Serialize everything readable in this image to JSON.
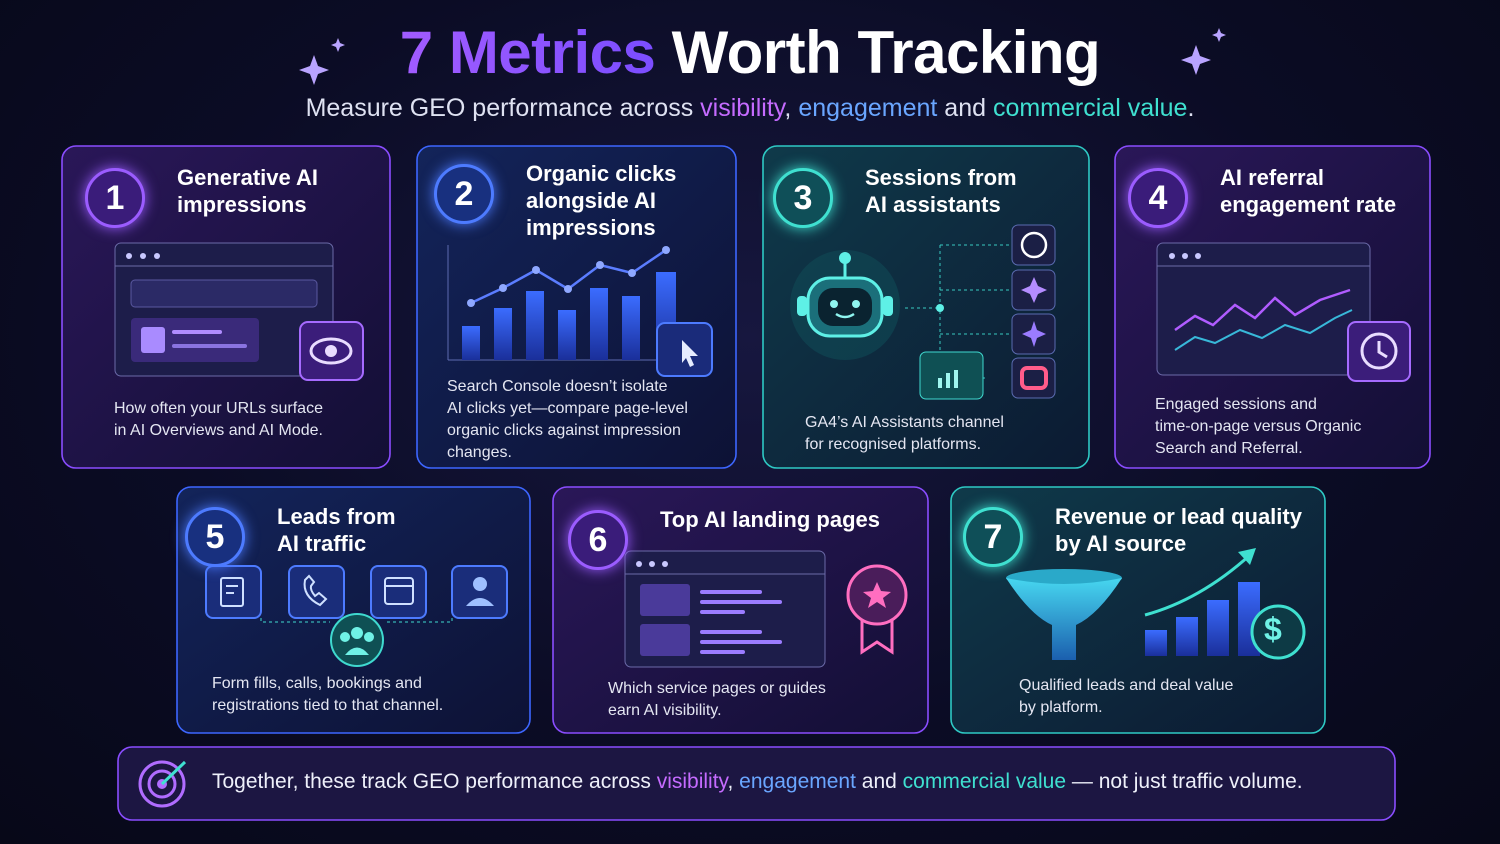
{
  "header": {
    "title": [
      "7 Metrics",
      "Worth Tracking"
    ],
    "subtitle": [
      "Measure GEO performance across ",
      "visibility",
      ", ",
      "engagement",
      " and ",
      "commercial value",
      "."
    ]
  },
  "cards": [
    {
      "number": "1",
      "title": [
        "Generative AI",
        "impressions"
      ],
      "description": [
        "How often your URLs surface",
        "in AI Overviews and AI Mode."
      ]
    },
    {
      "number": "2",
      "title": [
        "Organic clicks",
        "alongside AI",
        "impressions"
      ],
      "description": [
        "Search Console doesn’t isolate",
        "AI clicks yet—compare page-level",
        "organic clicks against impression",
        "changes."
      ]
    },
    {
      "number": "3",
      "title": [
        "Sessions from",
        "AI assistants"
      ],
      "description": [
        "GA4’s AI Assistants channel",
        "for recognised platforms."
      ]
    },
    {
      "number": "4",
      "title": [
        "AI referral",
        "engagement rate"
      ],
      "description": [
        "Engaged sessions and",
        "time-on-page versus Organic",
        "Search and Referral."
      ]
    },
    {
      "number": "5",
      "title": [
        "Leads from",
        "AI traffic"
      ],
      "description": [
        "Form fills, calls, bookings and",
        "registrations tied to that channel."
      ]
    },
    {
      "number": "6",
      "title": [
        "Top AI landing pages"
      ],
      "description": [
        "Which service pages or guides",
        "earn AI visibility."
      ]
    },
    {
      "number": "7",
      "title": [
        "Revenue or lead quality",
        "by AI source"
      ],
      "description": [
        "Qualified leads and deal value",
        "by platform."
      ]
    }
  ],
  "footer": [
    "Together, these track GEO performance across ",
    "visibility",
    ", ",
    "engagement",
    " and ",
    "commercial value",
    " — not just traffic volume."
  ]
}
